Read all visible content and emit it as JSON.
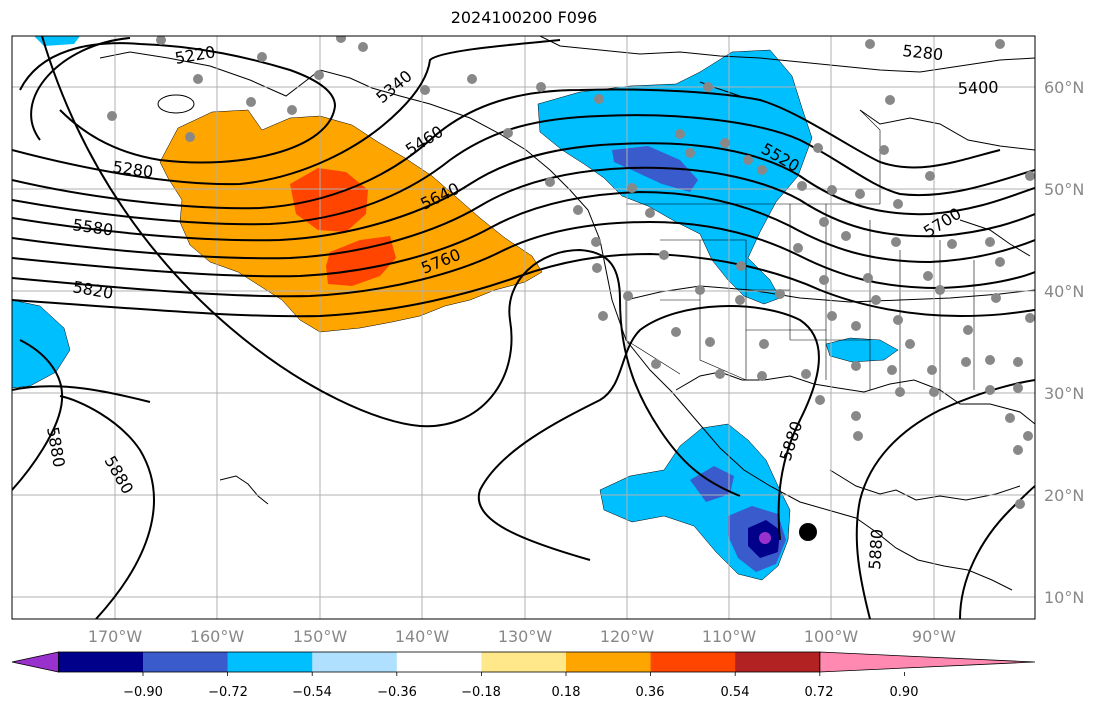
{
  "title": "2024100200 F096",
  "lon_labels": [
    "170°W",
    "160°W",
    "150°W",
    "140°W",
    "130°W",
    "120°W",
    "110°W",
    "100°W",
    "90°W"
  ],
  "lat_labels": [
    "60°N",
    "50°N",
    "40°N",
    "30°N",
    "20°N",
    "10°N"
  ],
  "colorbar": {
    "colors": [
      "#9932cc",
      "#00008b",
      "#3a5bcc",
      "#00bfff",
      "#b0e0ff",
      "#ffffff",
      "#ffe88a",
      "#ffa500",
      "#ff4500",
      "#b22222",
      "#ff89b0"
    ],
    "labels": [
      "−0.90",
      "−0.72",
      "−0.54",
      "−0.36",
      "−0.18",
      "0.18",
      "0.36",
      "0.54",
      "0.72",
      "0.90"
    ]
  },
  "contour_labels": [
    "5220",
    "5340",
    "5280",
    "5400",
    "5460",
    "5280",
    "5520",
    "5640",
    "5580",
    "5700",
    "5760",
    "5820",
    "5880",
    "5880",
    "5880",
    "5880"
  ],
  "colors": {
    "positive": "#ffa500",
    "strong_positive": "#ff4500",
    "negative": "#00bfff",
    "strong_negative": "#3a5bcc",
    "extreme_negative": "#9932cc",
    "station": "#888888",
    "grid": "#b0b0b0"
  }
}
